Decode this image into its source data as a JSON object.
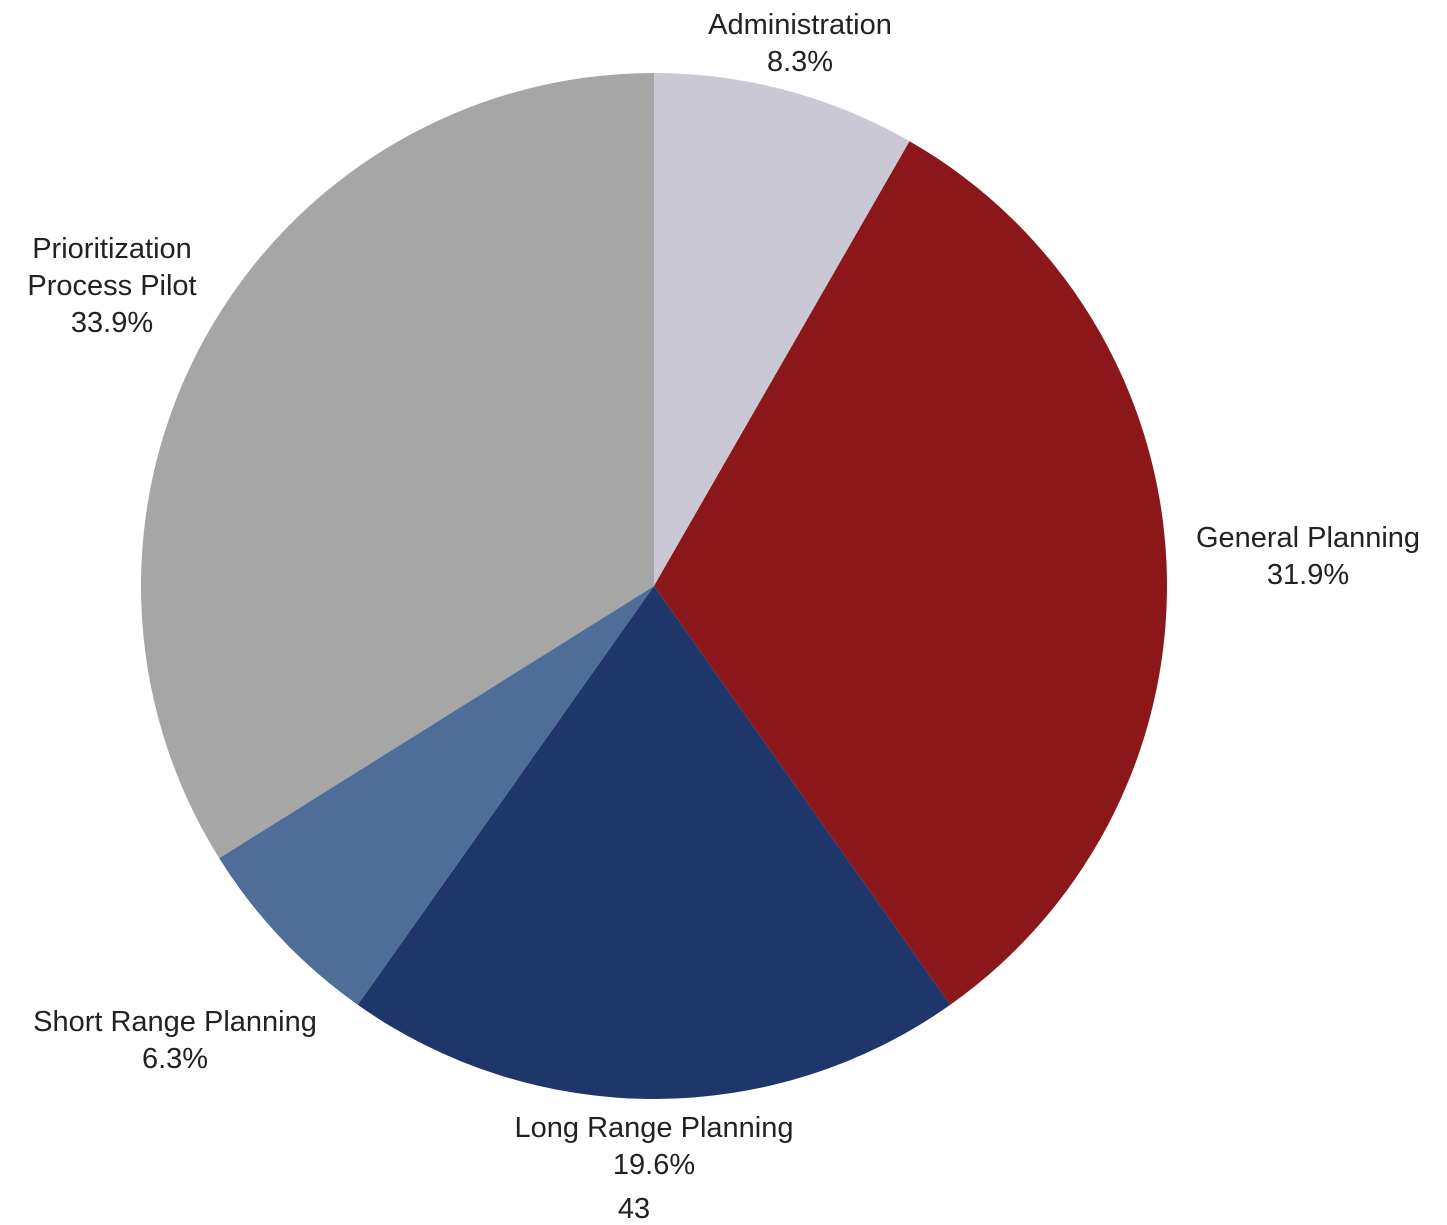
{
  "chart_data": {
    "type": "pie",
    "start_angle_deg": 0,
    "direction": "clockwise",
    "slices": [
      {
        "label": "Administration",
        "value": 8.3,
        "value_label": "8.3%",
        "color": "#CBC8D6"
      },
      {
        "label": "General Planning",
        "value": 31.9,
        "value_label": "31.9%",
        "color": "#8C171B"
      },
      {
        "label": "Long Range Planning",
        "value": 19.6,
        "value_label": "19.6%",
        "color": "#1F366B"
      },
      {
        "label": "Short Range Planning",
        "value": 6.3,
        "value_label": "6.3%",
        "color": "#4E6D98"
      },
      {
        "label": "Prioritization Process Pilot",
        "value": 33.9,
        "value_label": "33.9%",
        "color": "#A6A6A6"
      }
    ]
  },
  "footnote": "43"
}
